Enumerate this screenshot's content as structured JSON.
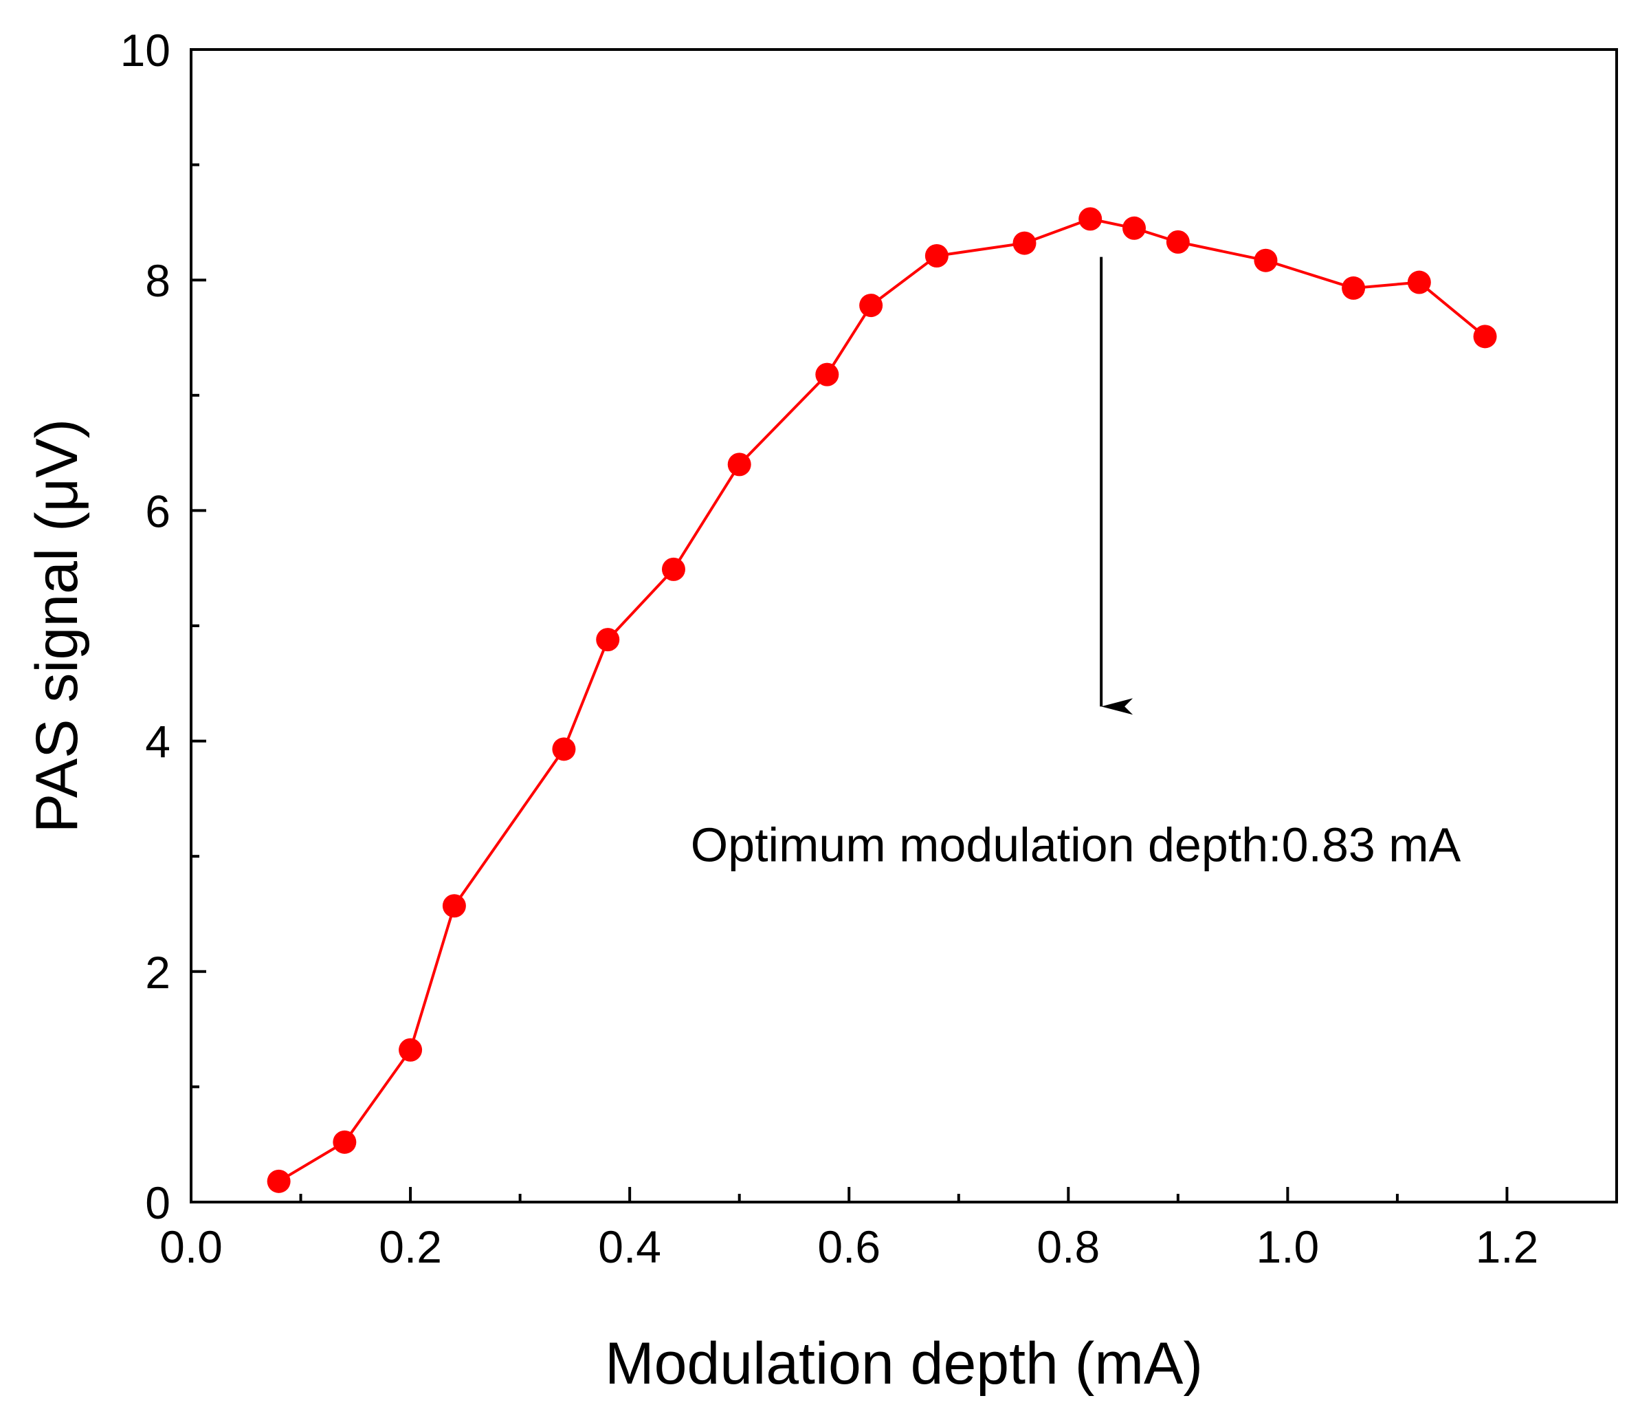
{
  "chart_data": {
    "type": "line",
    "title": "",
    "xlabel": "Modulation depth (mA)",
    "ylabel": "PAS signal (μV)",
    "xlim": [
      0.0,
      1.3
    ],
    "ylim": [
      0,
      10
    ],
    "x_ticks": [
      0.0,
      0.2,
      0.4,
      0.6,
      0.8,
      1.0,
      1.2
    ],
    "x_tick_labels": [
      "0.0",
      "0.2",
      "0.4",
      "0.6",
      "0.8",
      "1.0",
      "1.2"
    ],
    "x_minor_step": 0.1,
    "y_ticks": [
      0,
      2,
      4,
      6,
      8,
      10
    ],
    "y_tick_labels": [
      "0",
      "2",
      "4",
      "6",
      "8",
      "10"
    ],
    "y_minor_step": 1,
    "grid": false,
    "series": [
      {
        "name": "PAS signal",
        "color": "#ff0000",
        "marker": "circle",
        "x": [
          0.08,
          0.14,
          0.2,
          0.24,
          0.34,
          0.38,
          0.44,
          0.5,
          0.58,
          0.62,
          0.68,
          0.76,
          0.82,
          0.86,
          0.9,
          0.98,
          1.06,
          1.12,
          1.18
        ],
        "y": [
          0.18,
          0.52,
          1.32,
          2.57,
          3.93,
          4.88,
          5.49,
          6.4,
          7.18,
          7.78,
          8.21,
          8.32,
          8.53,
          8.45,
          8.33,
          8.17,
          7.93,
          7.98,
          7.51
        ]
      }
    ],
    "annotations": [
      {
        "text": "Optimum modulation depth:0.83 mA",
        "x": 0.83,
        "arrow_from_y": 8.2,
        "arrow_to_y": 4.3,
        "text_y": 3.1
      }
    ]
  }
}
